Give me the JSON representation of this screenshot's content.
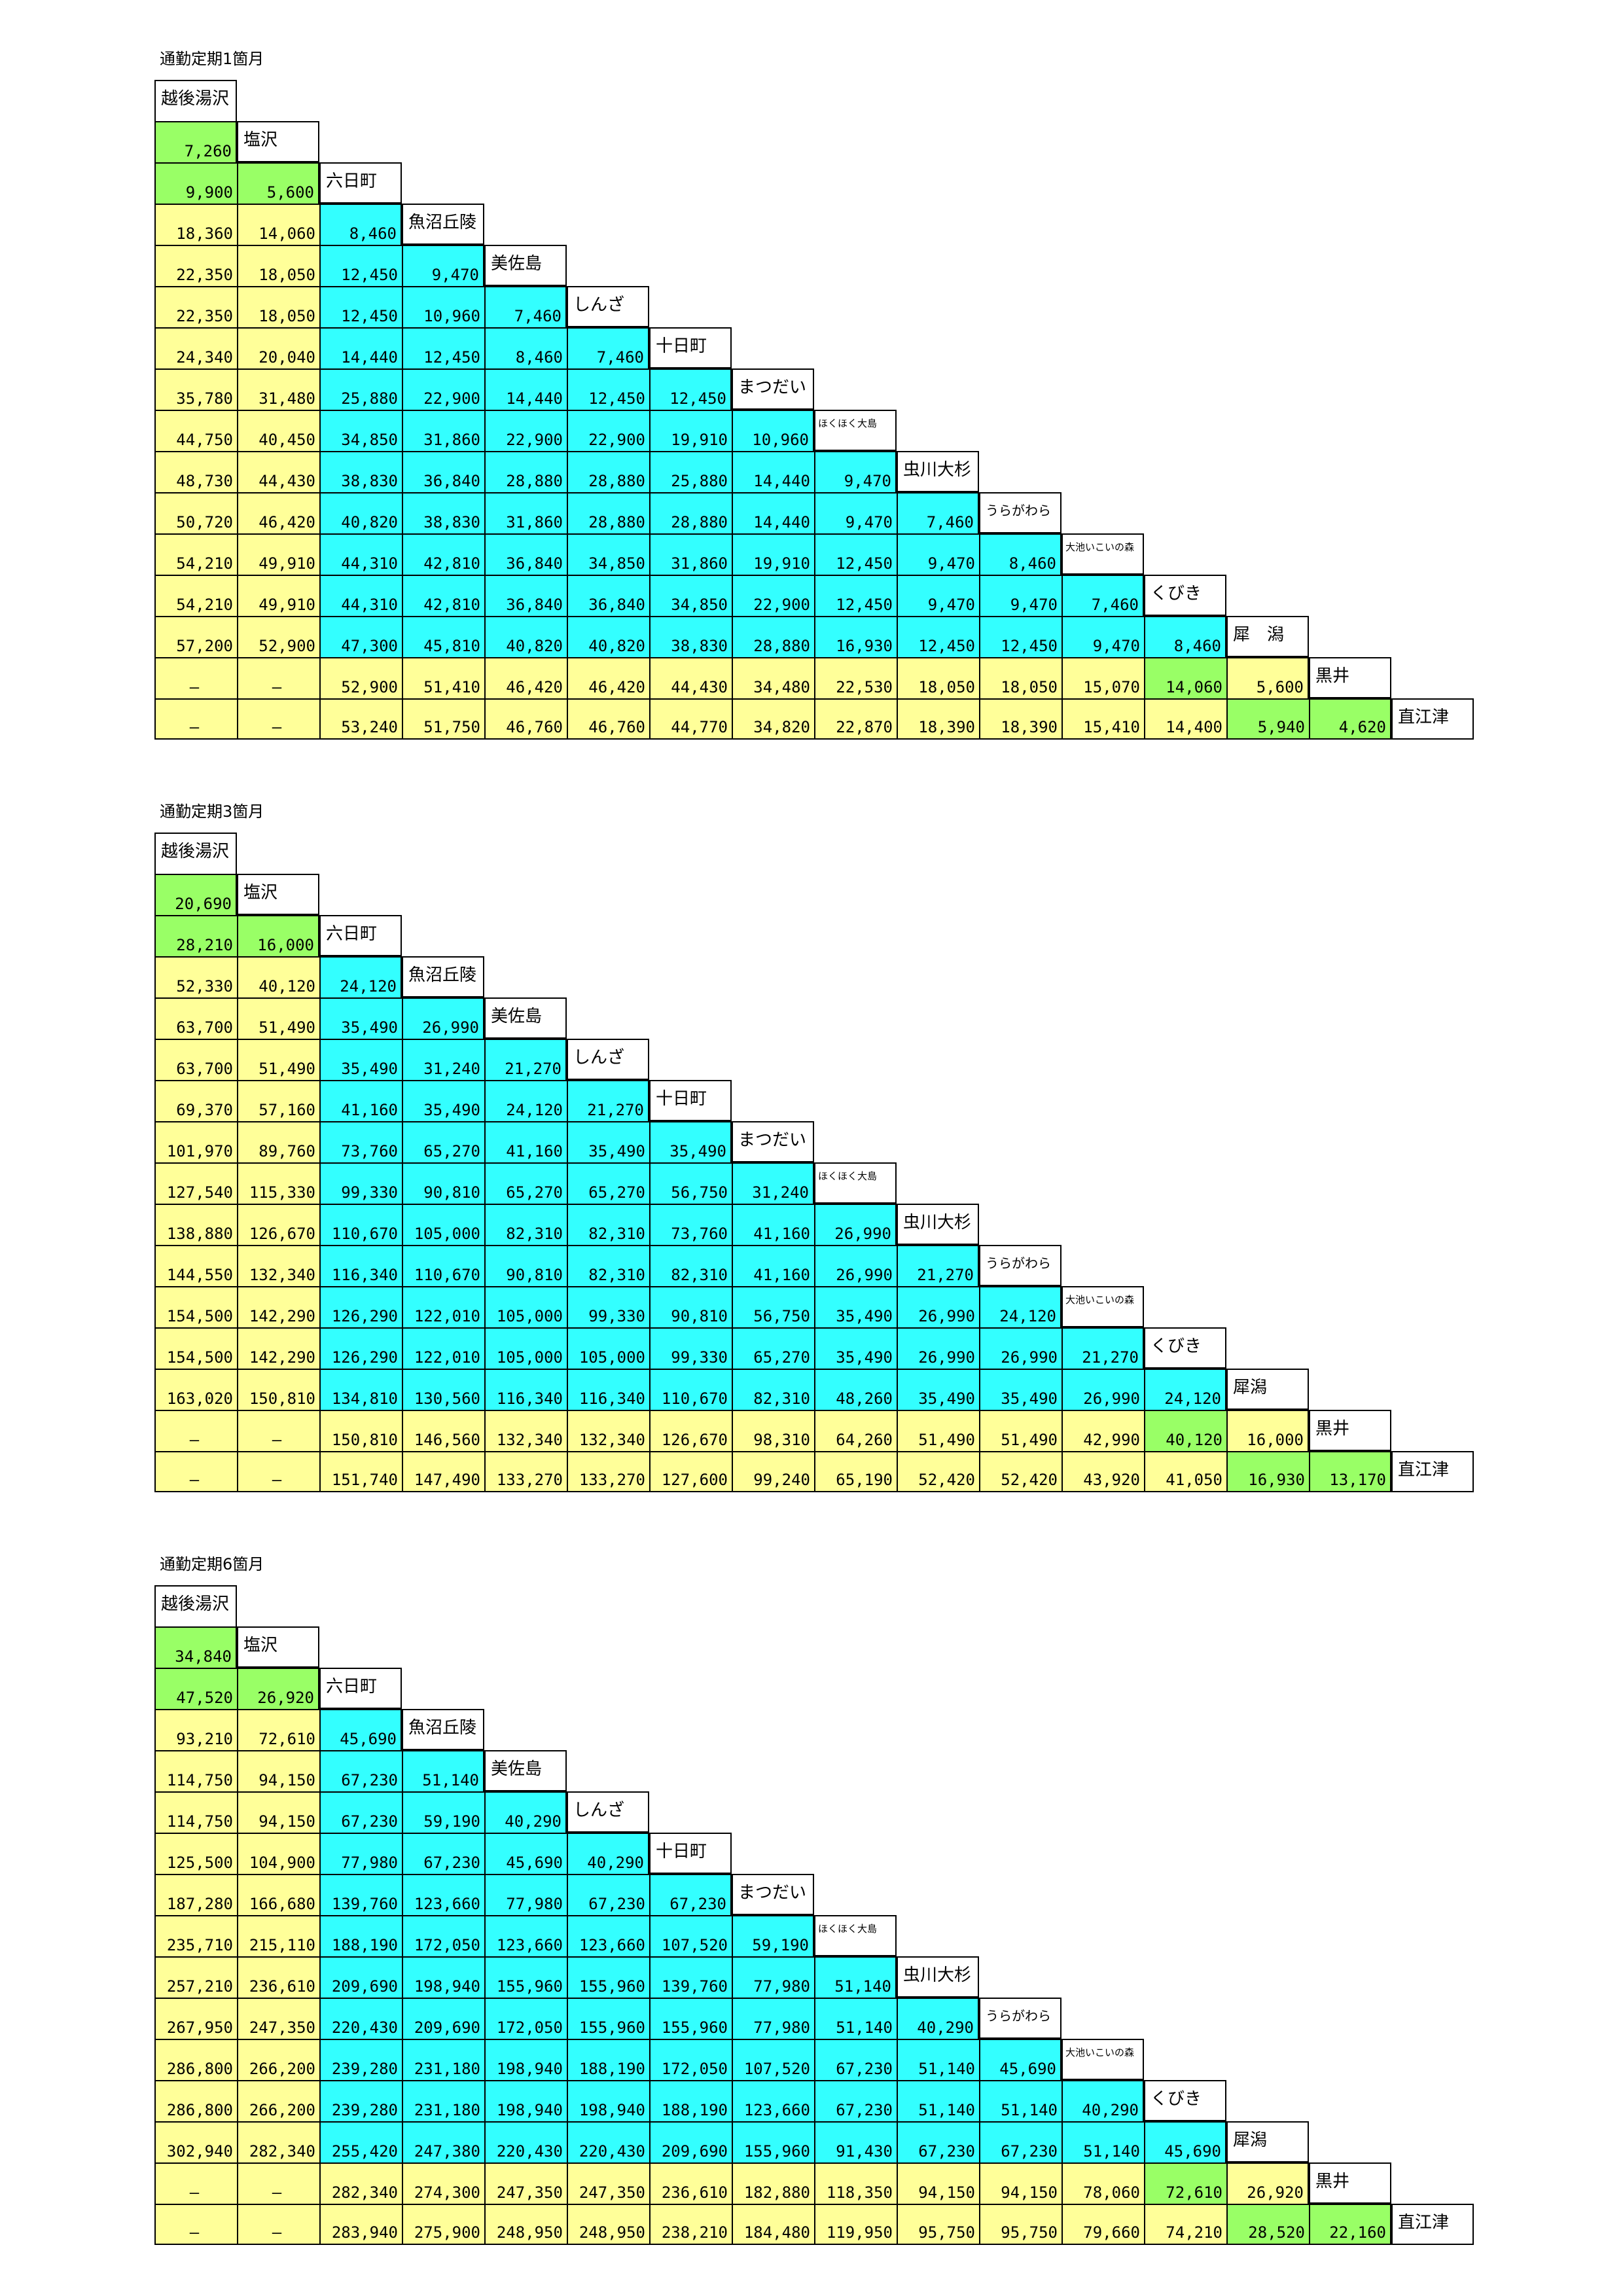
{
  "stations": [
    "越後湯沢",
    "塩沢",
    "六日町",
    "魚沼丘陵",
    "美佐島",
    "しんざ",
    "十日町",
    "まつだい",
    "ほくほく大島",
    "虫川大杉",
    "うらがわら",
    "大池いこいの森",
    "くびき",
    "犀　潟",
    "黒井",
    "直江津"
  ],
  "colors": {
    "green": "#99ff66",
    "yellow": "#ffff99",
    "cyan": "#33ffff"
  },
  "color_codes": [
    "G",
    "GG",
    "YYC",
    "YYCC",
    "YYCCC",
    "YYCCCC",
    "YYCCCCC",
    "YYCCCCCC",
    "YYCCCCCCC",
    "YYCCCCCCCC",
    "YYCCCCCCCCC",
    "YYCCCCCCCCCC",
    "YYCCCCCCCCCCC",
    "YYYYYYYYYYYYGY",
    "YYYYYYYYYYYYYGG"
  ],
  "tables": [
    {
      "title": "通勤定期1箇月",
      "stations": [
        "越後湯沢",
        "塩沢",
        "六日町",
        "魚沼丘陵",
        "美佐島",
        "しんざ",
        "十日町",
        "まつだい",
        "ほくほく大島",
        "虫川大杉",
        "うらがわら",
        "大池いこいの森",
        "くびき",
        "犀　潟",
        "黒井",
        "直江津"
      ],
      "rows": [
        [
          "7,260"
        ],
        [
          "9,900",
          "5,600"
        ],
        [
          "18,360",
          "14,060",
          "8,460"
        ],
        [
          "22,350",
          "18,050",
          "12,450",
          "9,470"
        ],
        [
          "22,350",
          "18,050",
          "12,450",
          "10,960",
          "7,460"
        ],
        [
          "24,340",
          "20,040",
          "14,440",
          "12,450",
          "8,460",
          "7,460"
        ],
        [
          "35,780",
          "31,480",
          "25,880",
          "22,900",
          "14,440",
          "12,450",
          "12,450"
        ],
        [
          "44,750",
          "40,450",
          "34,850",
          "31,860",
          "22,900",
          "22,900",
          "19,910",
          "10,960"
        ],
        [
          "48,730",
          "44,430",
          "38,830",
          "36,840",
          "28,880",
          "28,880",
          "25,880",
          "14,440",
          "9,470"
        ],
        [
          "50,720",
          "46,420",
          "40,820",
          "38,830",
          "31,860",
          "28,880",
          "28,880",
          "14,440",
          "9,470",
          "7,460"
        ],
        [
          "54,210",
          "49,910",
          "44,310",
          "42,810",
          "36,840",
          "34,850",
          "31,860",
          "19,910",
          "12,450",
          "9,470",
          "8,460"
        ],
        [
          "54,210",
          "49,910",
          "44,310",
          "42,810",
          "36,840",
          "36,840",
          "34,850",
          "22,900",
          "12,450",
          "9,470",
          "9,470",
          "7,460"
        ],
        [
          "57,200",
          "52,900",
          "47,300",
          "45,810",
          "40,820",
          "40,820",
          "38,830",
          "28,880",
          "16,930",
          "12,450",
          "12,450",
          "9,470",
          "8,460"
        ],
        [
          "—",
          "—",
          "52,900",
          "51,410",
          "46,420",
          "46,420",
          "44,430",
          "34,480",
          "22,530",
          "18,050",
          "18,050",
          "15,070",
          "14,060",
          "5,600"
        ],
        [
          "—",
          "—",
          "53,240",
          "51,750",
          "46,760",
          "46,760",
          "44,770",
          "34,820",
          "22,870",
          "18,390",
          "18,390",
          "15,410",
          "14,400",
          "5,940",
          "4,620"
        ]
      ]
    },
    {
      "title": "通勤定期3箇月",
      "stations": [
        "越後湯沢",
        "塩沢",
        "六日町",
        "魚沼丘陵",
        "美佐島",
        "しんざ",
        "十日町",
        "まつだい",
        "ほくほく大島",
        "虫川大杉",
        "うらがわら",
        "大池いこいの森",
        "くびき",
        "犀潟",
        "黒井",
        "直江津"
      ],
      "rows": [
        [
          "20,690"
        ],
        [
          "28,210",
          "16,000"
        ],
        [
          "52,330",
          "40,120",
          "24,120"
        ],
        [
          "63,700",
          "51,490",
          "35,490",
          "26,990"
        ],
        [
          "63,700",
          "51,490",
          "35,490",
          "31,240",
          "21,270"
        ],
        [
          "69,370",
          "57,160",
          "41,160",
          "35,490",
          "24,120",
          "21,270"
        ],
        [
          "101,970",
          "89,760",
          "73,760",
          "65,270",
          "41,160",
          "35,490",
          "35,490"
        ],
        [
          "127,540",
          "115,330",
          "99,330",
          "90,810",
          "65,270",
          "65,270",
          "56,750",
          "31,240"
        ],
        [
          "138,880",
          "126,670",
          "110,670",
          "105,000",
          "82,310",
          "82,310",
          "73,760",
          "41,160",
          "26,990"
        ],
        [
          "144,550",
          "132,340",
          "116,340",
          "110,670",
          "90,810",
          "82,310",
          "82,310",
          "41,160",
          "26,990",
          "21,270"
        ],
        [
          "154,500",
          "142,290",
          "126,290",
          "122,010",
          "105,000",
          "99,330",
          "90,810",
          "56,750",
          "35,490",
          "26,990",
          "24,120"
        ],
        [
          "154,500",
          "142,290",
          "126,290",
          "122,010",
          "105,000",
          "105,000",
          "99,330",
          "65,270",
          "35,490",
          "26,990",
          "26,990",
          "21,270"
        ],
        [
          "163,020",
          "150,810",
          "134,810",
          "130,560",
          "116,340",
          "116,340",
          "110,670",
          "82,310",
          "48,260",
          "35,490",
          "35,490",
          "26,990",
          "24,120"
        ],
        [
          "—",
          "—",
          "150,810",
          "146,560",
          "132,340",
          "132,340",
          "126,670",
          "98,310",
          "64,260",
          "51,490",
          "51,490",
          "42,990",
          "40,120",
          "16,000"
        ],
        [
          "—",
          "—",
          "151,740",
          "147,490",
          "133,270",
          "133,270",
          "127,600",
          "99,240",
          "65,190",
          "52,420",
          "52,420",
          "43,920",
          "41,050",
          "16,930",
          "13,170"
        ]
      ]
    },
    {
      "title": "通勤定期6箇月",
      "stations": [
        "越後湯沢",
        "塩沢",
        "六日町",
        "魚沼丘陵",
        "美佐島",
        "しんざ",
        "十日町",
        "まつだい",
        "ほくほく大島",
        "虫川大杉",
        "うらがわら",
        "大池いこいの森",
        "くびき",
        "犀潟",
        "黒井",
        "直江津"
      ],
      "rows": [
        [
          "34,840"
        ],
        [
          "47,520",
          "26,920"
        ],
        [
          "93,210",
          "72,610",
          "45,690"
        ],
        [
          "114,750",
          "94,150",
          "67,230",
          "51,140"
        ],
        [
          "114,750",
          "94,150",
          "67,230",
          "59,190",
          "40,290"
        ],
        [
          "125,500",
          "104,900",
          "77,980",
          "67,230",
          "45,690",
          "40,290"
        ],
        [
          "187,280",
          "166,680",
          "139,760",
          "123,660",
          "77,980",
          "67,230",
          "67,230"
        ],
        [
          "235,710",
          "215,110",
          "188,190",
          "172,050",
          "123,660",
          "123,660",
          "107,520",
          "59,190"
        ],
        [
          "257,210",
          "236,610",
          "209,690",
          "198,940",
          "155,960",
          "155,960",
          "139,760",
          "77,980",
          "51,140"
        ],
        [
          "267,950",
          "247,350",
          "220,430",
          "209,690",
          "172,050",
          "155,960",
          "155,960",
          "77,980",
          "51,140",
          "40,290"
        ],
        [
          "286,800",
          "266,200",
          "239,280",
          "231,180",
          "198,940",
          "188,190",
          "172,050",
          "107,520",
          "67,230",
          "51,140",
          "45,690"
        ],
        [
          "286,800",
          "266,200",
          "239,280",
          "231,180",
          "198,940",
          "198,940",
          "188,190",
          "123,660",
          "67,230",
          "51,140",
          "51,140",
          "40,290"
        ],
        [
          "302,940",
          "282,340",
          "255,420",
          "247,380",
          "220,430",
          "220,430",
          "209,690",
          "155,960",
          "91,430",
          "67,230",
          "67,230",
          "51,140",
          "45,690"
        ],
        [
          "—",
          "—",
          "282,340",
          "274,300",
          "247,350",
          "247,350",
          "236,610",
          "182,880",
          "118,350",
          "94,150",
          "94,150",
          "78,060",
          "72,610",
          "26,920"
        ],
        [
          "—",
          "—",
          "283,940",
          "275,900",
          "248,950",
          "248,950",
          "238,210",
          "184,480",
          "119,950",
          "95,750",
          "95,750",
          "79,660",
          "74,210",
          "28,520",
          "22,160"
        ]
      ]
    }
  ]
}
